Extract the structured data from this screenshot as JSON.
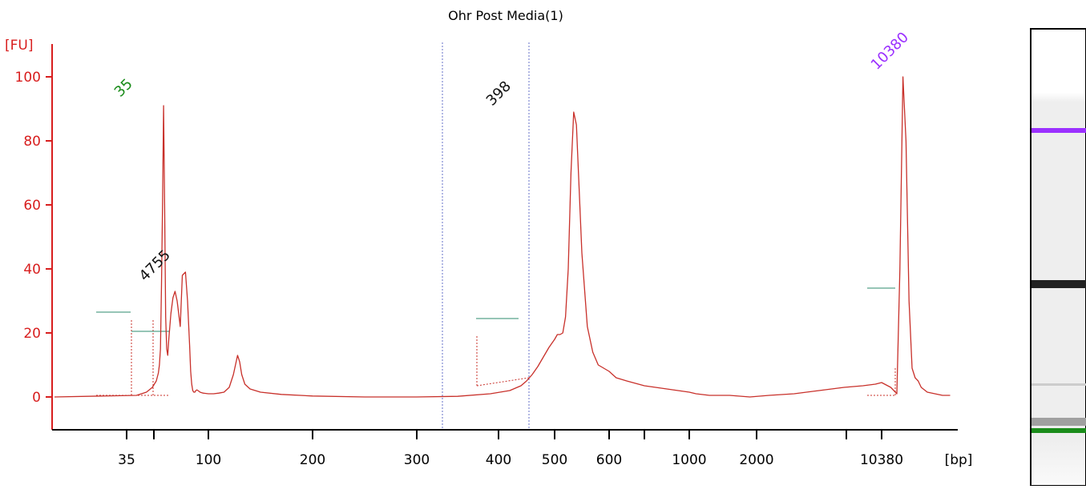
{
  "chart_data": {
    "type": "line",
    "title": "Ohr Post Media(1)",
    "ylabel": "[FU]",
    "xlabel": "[bp]",
    "ylim": [
      -10,
      105
    ],
    "yticks": [
      0,
      20,
      40,
      60,
      80,
      100
    ],
    "xticks": [
      "35",
      "",
      "100",
      "200",
      "300",
      "400",
      "500",
      "600",
      "",
      "1000",
      "2000",
      "",
      "10380"
    ],
    "grid": false,
    "peaks": [
      {
        "label": "35",
        "value": 91,
        "color": "#1a8c1a"
      },
      {
        "label": "4755",
        "value": 39,
        "color": "#111111"
      },
      {
        "label": "398",
        "value": 89,
        "color": "#111111"
      },
      {
        "label": "10380",
        "value": 100,
        "color": "#9b30ff"
      }
    ],
    "series": [
      {
        "color": "#c8302a",
        "x": [
          20,
          40,
          45,
          48,
          50,
          52,
          53,
          54,
          55,
          56,
          57,
          58,
          59,
          60,
          61,
          62,
          63,
          64,
          66,
          68,
          70,
          73,
          75,
          78,
          80,
          82,
          83,
          84,
          85,
          86,
          87,
          88,
          89,
          90,
          92,
          95,
          100,
          105,
          110,
          115,
          120,
          124,
          128,
          130,
          132,
          135,
          140,
          150,
          170,
          200,
          250,
          300,
          350,
          390,
          420,
          440,
          450,
          460,
          470,
          480,
          490,
          500,
          505,
          510,
          515,
          520,
          525,
          530,
          535,
          540,
          545,
          550,
          560,
          570,
          580,
          600,
          640,
          700,
          800,
          900,
          1000,
          1100,
          1300,
          1600,
          1900,
          2100,
          2300,
          2500,
          2700,
          2850,
          2950,
          3000,
          3020,
          3040,
          3060,
          3080,
          3100,
          3120,
          3140,
          3160,
          3180,
          3200,
          3220,
          3240,
          3260,
          3300,
          3350,
          3400,
          3450
        ],
        "y": [
          0,
          0.5,
          1.5,
          3,
          5,
          7.5,
          10,
          15,
          35,
          60,
          91,
          60,
          25,
          15,
          13,
          18,
          22,
          26,
          31,
          33,
          30,
          22,
          38,
          39,
          30,
          16,
          8,
          4,
          2,
          1.5,
          1.5,
          2,
          2.2,
          2,
          1.5,
          1.2,
          1,
          1,
          1.2,
          1.5,
          3,
          7,
          13,
          11,
          7,
          4,
          2.5,
          1.5,
          0.8,
          0.3,
          0,
          0,
          0.2,
          1,
          2,
          3.5,
          5,
          7,
          9.5,
          12.5,
          15.5,
          18,
          19.5,
          19.5,
          20,
          25,
          40,
          70,
          89,
          85,
          65,
          45,
          22,
          14,
          10,
          8,
          6,
          5,
          3.5,
          2.5,
          1.5,
          1,
          0.5,
          0.5,
          0,
          0.5,
          1,
          2,
          3,
          3.5,
          4,
          4.5,
          4,
          3.5,
          3,
          2,
          1,
          40,
          100,
          80,
          30,
          9,
          6,
          5,
          3,
          1.5,
          1,
          0.5,
          0.5
        ]
      }
    ],
    "annotations": [
      {
        "x": 1050,
        "y": 0
      }
    ]
  }
}
